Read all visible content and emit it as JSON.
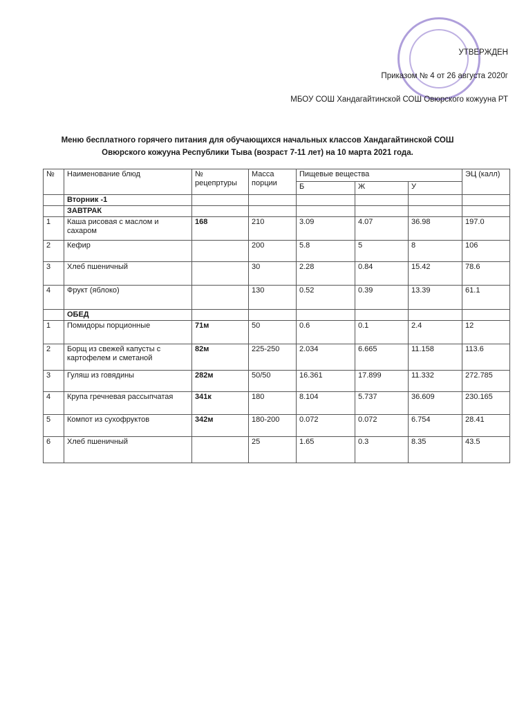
{
  "header": {
    "approved": "УТВЕРЖДЕН",
    "order": "Приказом №  4 от 26 августа 2020г",
    "school": "МБОУ СОШ Хандагайтинской СОШ Овюрского кожууна РТ"
  },
  "title": {
    "line1": "Меню  бесплатного горячего  питания для обучающихся начальных классов Хандагайтинской СОШ",
    "line2": "Овюрского кожууна Республики Тыва (возраст 7-11 лет) на 10 марта 2021 года."
  },
  "table": {
    "columns": {
      "no": "№",
      "name": "Наименование блюд",
      "recipe": "№ рецепртуры",
      "mass": "Масса порции",
      "nutrients": "Пищевые вещества",
      "b": "Б",
      "zh": "Ж",
      "u": "У",
      "ec": "ЭЦ (калл)"
    },
    "day": "Вторник -1",
    "sections": [
      {
        "title": "ЗАВТРАК",
        "rows": [
          {
            "no": "1",
            "name": " Каша рисовая с маслом и сахаром",
            "recipe": "168",
            "mass": "210",
            "b": "3.09",
            "zh": "4.07",
            "u": "36.98",
            "ec": "197.0"
          },
          {
            "no": "2",
            "name": "Кефир",
            "mass": "200",
            "b": "5.8",
            "zh": "5",
            "u": "8",
            "ec": "106"
          },
          {
            "no": "3",
            "name": "Хлеб пшеничный",
            "mass": "30",
            "b": "2.28",
            "zh": "0.84",
            "u": "15.42",
            "ec": "78.6"
          },
          {
            "no": "4",
            "name": "Фрукт (яблоко)",
            "mass": "130",
            "b": "0.52",
            "zh": "0.39",
            "u": "13.39",
            "ec": "61.1"
          }
        ]
      },
      {
        "title": "ОБЕД",
        "rows": [
          {
            "no": "1",
            "name": "Помидоры порционные",
            "recipe": "71м",
            "mass": "50",
            "b": "0.6",
            "zh": "0.1",
            "u": "2.4",
            "ec": "12"
          },
          {
            "no": "2",
            "name": "Борщ из свежей капусты с картофелем и сметаной",
            "recipe": "82м",
            "mass": "225-250",
            "b": "2.034",
            "zh": "6.665",
            "u": "11.158",
            "ec": "113.6"
          },
          {
            "no": "3",
            "name": "Гуляш из говядины",
            "recipe": "282м",
            "mass": "50/50",
            "b": "16.361",
            "zh": "17.899",
            "u": "11.332",
            "ec": "272.785"
          },
          {
            "no": "4",
            "name": "Крупа гречневая рассыпчатая",
            "recipe": "341к",
            "mass": "180",
            "b": "8.104",
            "zh": "5.737",
            "u": "36.609",
            "ec": "230.165"
          },
          {
            "no": "5",
            "name": "Компот из сухофруктов",
            "recipe": "342м",
            "mass": "180-200",
            "b": "0.072",
            "zh": "0.072",
            "u": "6.754",
            "ec": "28.41"
          },
          {
            "no": "6",
            "name": "Хлеб пшеничный",
            "mass": "25",
            "b": "1.65",
            "zh": "0.3",
            "u": "8.35",
            "ec": "43.5"
          }
        ]
      }
    ]
  }
}
